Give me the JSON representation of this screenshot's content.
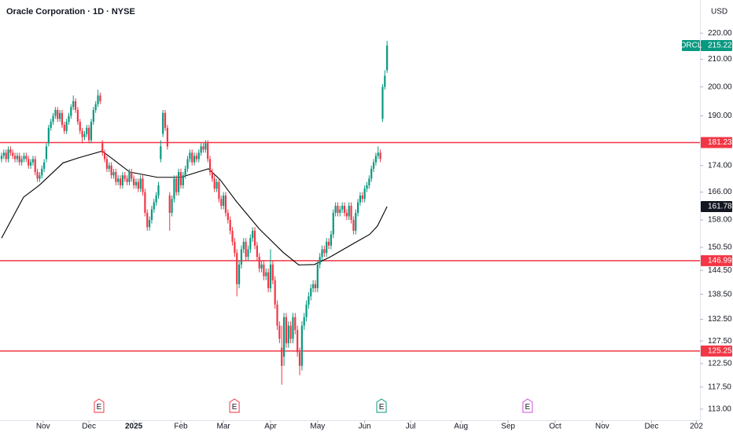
{
  "chart_data": {
    "type": "candlestick",
    "title": "Oracle Corporation · 1D · NYSE",
    "currency": "USD",
    "symbol": "ORCL",
    "up_color": "#089981",
    "down_color": "#f23645",
    "log_scale": true,
    "xlim": [
      -0.7,
      311.6
    ],
    "xticks": [
      {
        "value": 18.5,
        "label": "Nov"
      },
      {
        "value": 39,
        "label": "Dec"
      },
      {
        "value": 59,
        "label": "2025"
      },
      {
        "value": 80,
        "label": "Feb"
      },
      {
        "value": 99,
        "label": "Mar"
      },
      {
        "value": 120,
        "label": "Apr"
      },
      {
        "value": 141,
        "label": "May"
      },
      {
        "value": 162,
        "label": "Jun"
      },
      {
        "value": 182.5,
        "label": "Jul"
      },
      {
        "value": 205,
        "label": "Aug"
      },
      {
        "value": 226,
        "label": "Sep"
      },
      {
        "value": 247,
        "label": "Oct"
      },
      {
        "value": 268,
        "label": "Nov"
      },
      {
        "value": 290,
        "label": "Dec"
      },
      {
        "value": 310,
        "label": "202"
      }
    ],
    "ylim": [
      110.8,
      233.3
    ],
    "yticks": [
      {
        "value": 220,
        "label": "220.00"
      },
      {
        "value": 210,
        "label": "210.00"
      },
      {
        "value": 200,
        "label": "200.00"
      },
      {
        "value": 190,
        "label": "190.00"
      },
      {
        "value": 174,
        "label": "174.00"
      },
      {
        "value": 166,
        "label": "166.00"
      },
      {
        "value": 158,
        "label": "158.00"
      },
      {
        "value": 150.5,
        "label": "150.50"
      },
      {
        "value": 144.5,
        "label": "144.50"
      },
      {
        "value": 138.5,
        "label": "138.50"
      },
      {
        "value": 132.5,
        "label": "132.50"
      },
      {
        "value": 127.5,
        "label": "127.50"
      },
      {
        "value": 122.5,
        "label": "122.50"
      },
      {
        "value": 117.5,
        "label": "117.50"
      },
      {
        "value": 113,
        "label": "113.00"
      }
    ],
    "candles": [
      [
        176,
        178,
        175,
        177
      ],
      [
        177,
        179,
        176,
        178
      ],
      [
        178,
        179,
        175,
        176
      ],
      [
        176,
        180,
        175,
        179
      ],
      [
        179,
        180,
        177,
        178
      ],
      [
        178,
        179,
        176,
        177
      ],
      [
        177,
        178,
        175,
        176
      ],
      [
        176,
        178,
        175,
        177
      ],
      [
        177,
        178,
        174,
        175
      ],
      [
        175,
        177,
        174,
        176
      ],
      [
        176,
        178,
        175,
        177
      ],
      [
        177,
        178,
        175,
        176
      ],
      [
        176,
        177,
        173,
        174
      ],
      [
        174,
        176,
        173,
        175
      ],
      [
        175,
        177,
        174,
        176
      ],
      [
        176,
        177,
        171,
        172
      ],
      [
        172,
        173,
        169,
        170
      ],
      [
        170,
        172,
        169,
        171
      ],
      [
        171,
        174,
        170,
        173
      ],
      [
        173,
        176,
        172,
        175
      ],
      [
        176,
        181,
        175,
        180
      ],
      [
        181,
        187,
        180,
        186
      ],
      [
        186,
        189,
        185,
        188
      ],
      [
        188,
        191,
        187,
        190
      ],
      [
        190,
        193,
        189,
        192
      ],
      [
        192,
        193,
        188,
        189
      ],
      [
        189,
        192,
        188,
        191
      ],
      [
        191,
        192,
        186,
        187
      ],
      [
        187,
        188,
        184,
        185
      ],
      [
        185,
        189,
        184,
        188
      ],
      [
        188,
        191,
        187,
        190
      ],
      [
        190,
        194,
        189,
        193
      ],
      [
        193,
        197,
        192,
        195
      ],
      [
        195,
        196,
        191,
        192
      ],
      [
        192,
        193,
        187,
        188
      ],
      [
        188,
        189,
        184,
        185
      ],
      [
        185,
        186,
        181,
        183
      ],
      [
        183,
        185,
        182,
        184
      ],
      [
        184,
        187,
        183,
        186
      ],
      [
        186,
        187,
        181,
        182
      ],
      [
        182,
        189,
        181,
        188
      ],
      [
        188,
        193,
        187,
        192
      ],
      [
        192,
        195,
        191,
        194
      ],
      [
        194,
        199,
        193,
        197
      ],
      [
        197,
        198,
        194,
        195
      ],
      [
        181,
        182,
        177,
        178
      ],
      [
        178,
        179,
        175,
        176
      ],
      [
        176,
        177,
        172,
        173
      ],
      [
        173,
        175,
        172,
        174
      ],
      [
        174,
        175,
        170,
        171
      ],
      [
        171,
        173,
        170,
        172
      ],
      [
        172,
        173,
        168,
        169
      ],
      [
        169,
        171,
        168,
        170
      ],
      [
        170,
        171,
        167,
        168
      ],
      [
        168,
        172,
        167,
        171
      ],
      [
        171,
        172,
        169,
        170
      ],
      [
        170,
        171,
        168,
        169
      ],
      [
        169,
        173,
        168,
        172
      ],
      [
        172,
        173,
        169,
        170
      ],
      [
        170,
        171,
        167,
        168
      ],
      [
        168,
        170,
        167,
        169
      ],
      [
        169,
        170,
        166,
        167
      ],
      [
        167,
        171,
        166,
        170
      ],
      [
        170,
        171,
        165,
        166
      ],
      [
        166,
        167,
        159,
        160
      ],
      [
        160,
        161,
        155,
        156
      ],
      [
        156,
        159,
        155,
        158
      ],
      [
        158,
        162,
        157,
        161
      ],
      [
        161,
        164,
        160,
        163
      ],
      [
        163,
        166,
        162,
        165
      ],
      [
        165,
        169,
        164,
        168
      ],
      [
        176,
        182,
        175,
        180
      ],
      [
        184,
        192,
        183,
        191
      ],
      [
        191,
        192,
        185,
        186
      ],
      [
        186,
        187,
        179,
        180
      ],
      [
        165,
        166,
        155,
        160
      ],
      [
        160,
        165,
        159,
        164
      ],
      [
        164,
        171,
        163,
        170
      ],
      [
        170,
        171,
        165,
        166
      ],
      [
        166,
        173,
        165,
        172
      ],
      [
        172,
        173,
        167,
        168
      ],
      [
        168,
        172,
        167,
        171
      ],
      [
        171,
        174,
        170,
        173
      ],
      [
        173,
        177,
        172,
        176
      ],
      [
        176,
        179,
        175,
        178
      ],
      [
        178,
        179,
        174,
        175
      ],
      [
        175,
        178,
        174,
        177
      ],
      [
        177,
        178,
        175,
        176
      ],
      [
        176,
        179,
        175,
        178
      ],
      [
        178,
        181,
        177,
        180
      ],
      [
        180,
        181,
        178,
        179
      ],
      [
        179,
        182,
        178,
        181
      ],
      [
        181,
        182,
        175,
        176
      ],
      [
        176,
        177,
        171,
        172
      ],
      [
        172,
        173,
        169,
        170
      ],
      [
        170,
        171,
        166,
        167
      ],
      [
        167,
        170,
        166,
        169
      ],
      [
        169,
        170,
        163,
        164
      ],
      [
        164,
        165,
        161,
        162
      ],
      [
        162,
        166,
        161,
        165
      ],
      [
        165,
        166,
        159,
        160
      ],
      [
        160,
        161,
        157,
        158
      ],
      [
        158,
        159,
        154,
        155
      ],
      [
        155,
        156,
        151,
        152
      ],
      [
        152,
        153,
        148,
        149
      ],
      [
        149,
        150,
        138,
        141
      ],
      [
        141,
        147,
        140,
        146
      ],
      [
        146,
        151,
        145,
        150
      ],
      [
        150,
        153,
        149,
        152
      ],
      [
        152,
        153,
        147,
        148
      ],
      [
        148,
        151,
        147,
        150
      ],
      [
        150,
        154,
        149,
        153
      ],
      [
        153,
        156,
        152,
        155
      ],
      [
        155,
        156,
        150,
        151
      ],
      [
        151,
        152,
        147,
        148
      ],
      [
        148,
        149,
        144,
        145
      ],
      [
        145,
        147,
        144,
        146
      ],
      [
        146,
        147,
        142,
        143
      ],
      [
        143,
        145,
        142,
        144
      ],
      [
        144,
        145,
        139,
        140
      ],
      [
        140,
        150,
        139,
        146
      ],
      [
        146,
        147,
        141,
        142
      ],
      [
        142,
        143,
        135,
        136
      ],
      [
        136,
        137,
        130,
        131
      ],
      [
        131,
        132,
        127,
        128
      ],
      [
        126,
        131,
        118,
        122
      ],
      [
        124,
        134,
        122,
        133
      ],
      [
        133,
        134,
        126,
        127
      ],
      [
        127,
        132,
        126,
        131
      ],
      [
        131,
        132,
        127,
        128
      ],
      [
        128,
        134,
        127,
        133
      ],
      [
        133,
        134,
        129,
        130
      ],
      [
        130,
        131,
        124,
        125
      ],
      [
        125,
        126,
        120,
        122
      ],
      [
        122,
        132,
        121,
        131
      ],
      [
        131,
        134,
        130,
        133
      ],
      [
        133,
        137,
        132,
        136
      ],
      [
        136,
        139,
        135,
        138
      ],
      [
        138,
        141,
        137,
        140
      ],
      [
        140,
        142,
        139,
        141
      ],
      [
        141,
        142,
        139,
        140
      ],
      [
        140,
        147,
        139,
        146
      ],
      [
        146,
        149,
        145,
        148
      ],
      [
        148,
        151,
        147,
        150
      ],
      [
        150,
        151,
        148,
        149
      ],
      [
        149,
        153,
        148,
        152
      ],
      [
        152,
        153,
        150,
        151
      ],
      [
        151,
        155,
        150,
        154
      ],
      [
        154,
        161,
        153,
        160
      ],
      [
        160,
        163,
        159,
        162
      ],
      [
        162,
        163,
        159,
        160
      ],
      [
        160,
        162,
        159,
        161
      ],
      [
        161,
        163,
        160,
        162
      ],
      [
        162,
        163,
        159,
        160
      ],
      [
        160,
        161,
        158,
        159
      ],
      [
        159,
        163,
        158,
        162
      ],
      [
        162,
        163,
        157,
        158
      ],
      [
        158,
        159,
        154,
        155
      ],
      [
        155,
        161,
        154,
        160
      ],
      [
        160,
        164,
        159,
        163
      ],
      [
        163,
        166,
        162,
        165
      ],
      [
        165,
        166,
        163,
        164
      ],
      [
        164,
        168,
        163,
        167
      ],
      [
        167,
        169,
        166,
        168
      ],
      [
        168,
        171,
        167,
        170
      ],
      [
        170,
        174,
        169,
        173
      ],
      [
        173,
        176,
        172,
        175
      ],
      [
        175,
        178,
        174,
        177
      ],
      [
        177,
        180,
        176,
        178
      ],
      [
        178,
        179,
        175,
        176
      ],
      [
        189,
        201,
        188,
        200
      ],
      [
        200,
        206,
        199,
        204
      ],
      [
        206,
        217,
        205,
        215.22
      ]
    ],
    "ma": {
      "color": "#000000",
      "x": [
        0,
        9.8,
        16.8,
        27.4,
        34.4,
        44.9,
        57.2,
        69.5,
        80,
        92.3,
        97.5,
        104.6,
        115,
        125.6,
        132.6,
        139.6,
        146.7,
        157.2,
        164.2,
        167.7,
        172
      ],
      "values": [
        153,
        164.5,
        168,
        174.8,
        176.4,
        178.5,
        172,
        170.4,
        170.4,
        173,
        169.7,
        163.4,
        155.5,
        149.2,
        145.9,
        146,
        148,
        151.6,
        154,
        156.3,
        161.78
      ]
    },
    "levels": {
      "color": "#f23645",
      "values": [
        181.23,
        146.99,
        125.25
      ]
    },
    "events": [
      {
        "x": 43.5,
        "label": "E",
        "color": "#f23645"
      },
      {
        "x": 103.9,
        "label": "E",
        "color": "#f23645"
      },
      {
        "x": 169.5,
        "label": "E",
        "color": "#089981"
      },
      {
        "x": 234.7,
        "label": "E",
        "color": "#c850d8"
      }
    ]
  }
}
